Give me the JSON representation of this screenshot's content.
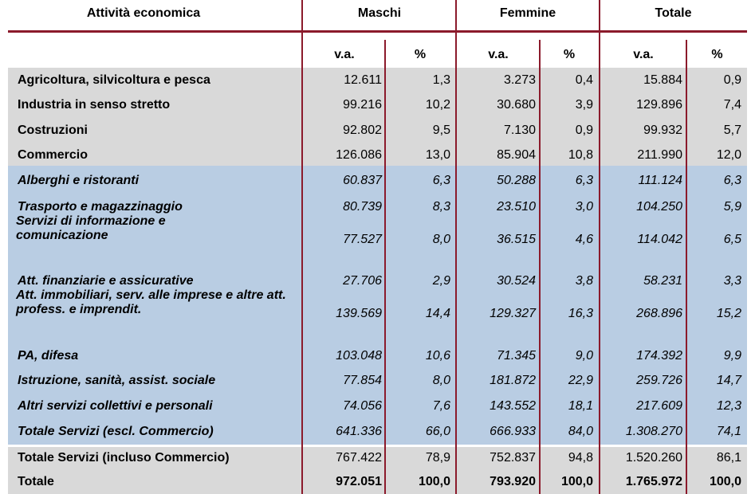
{
  "header": {
    "activity": "Attività economica",
    "males": "Maschi",
    "females": "Femmine",
    "total": "Totale",
    "va": "v.a.",
    "pct": "%"
  },
  "rows": [
    {
      "label": "Agricoltura, silvicoltura e pesca",
      "m_va": "12.611",
      "m_pct": "1,3",
      "f_va": "3.273",
      "f_pct": "0,4",
      "t_va": "15.884",
      "t_pct": "0,9"
    },
    {
      "label": "Industria in senso stretto",
      "m_va": "99.216",
      "m_pct": "10,2",
      "f_va": "30.680",
      "f_pct": "3,9",
      "t_va": "129.896",
      "t_pct": "7,4"
    },
    {
      "label": "Costruzioni",
      "m_va": "92.802",
      "m_pct": "9,5",
      "f_va": "7.130",
      "f_pct": "0,9",
      "t_va": "99.932",
      "t_pct": "5,7"
    },
    {
      "label": "Commercio",
      "m_va": "126.086",
      "m_pct": "13,0",
      "f_va": "85.904",
      "f_pct": "10,8",
      "t_va": "211.990",
      "t_pct": "12,0"
    },
    {
      "label": "Alberghi e ristoranti",
      "m_va": "60.837",
      "m_pct": "6,3",
      "f_va": "50.288",
      "f_pct": "6,3",
      "t_va": "111.124",
      "t_pct": "6,3"
    },
    {
      "label": "Trasporto e magazzinaggio",
      "m_va": "80.739",
      "m_pct": "8,3",
      "f_va": "23.510",
      "f_pct": "3,0",
      "t_va": "104.250",
      "t_pct": "5,9"
    },
    {
      "label": "Servizi di informazione e comunicazione",
      "m_va": "77.527",
      "m_pct": "8,0",
      "f_va": "36.515",
      "f_pct": "4,6",
      "t_va": "114.042",
      "t_pct": "6,5"
    },
    {
      "label": "Att. finanziarie e assicurative",
      "m_va": "27.706",
      "m_pct": "2,9",
      "f_va": "30.524",
      "f_pct": "3,8",
      "t_va": "58.231",
      "t_pct": "3,3"
    },
    {
      "label": "Att. immobiliari, serv. alle imprese e altre att. profess. e imprendit.",
      "m_va": "139.569",
      "m_pct": "14,4",
      "f_va": "129.327",
      "f_pct": "16,3",
      "t_va": "268.896",
      "t_pct": "15,2"
    },
    {
      "label": "PA, difesa",
      "m_va": "103.048",
      "m_pct": "10,6",
      "f_va": "71.345",
      "f_pct": "9,0",
      "t_va": "174.392",
      "t_pct": "9,9"
    },
    {
      "label": "Istruzione, sanità, assist. sociale",
      "m_va": "77.854",
      "m_pct": "8,0",
      "f_va": "181.872",
      "f_pct": "22,9",
      "t_va": "259.726",
      "t_pct": "14,7"
    },
    {
      "label": "Altri servizi collettivi e personali",
      "m_va": "74.056",
      "m_pct": "7,6",
      "f_va": "143.552",
      "f_pct": "18,1",
      "t_va": "217.609",
      "t_pct": "12,3"
    },
    {
      "label": "Totale Servizi (escl. Commercio)",
      "m_va": "641.336",
      "m_pct": "66,0",
      "f_va": "666.933",
      "f_pct": "84,0",
      "t_va": "1.308.270",
      "t_pct": "74,1"
    },
    {
      "label": "Totale Servizi (incluso Commercio)",
      "m_va": "767.422",
      "m_pct": "78,9",
      "f_va": "752.837",
      "f_pct": "94,8",
      "t_va": "1.520.260",
      "t_pct": "86,1"
    },
    {
      "label": "Totale",
      "m_va": "972.051",
      "m_pct": "100,0",
      "f_va": "793.920",
      "f_pct": "100,0",
      "t_va": "1.765.972",
      "t_pct": "100,0"
    }
  ],
  "colors": {
    "rule": "#8b1a2b",
    "gray_band": "#d9d9d9",
    "blue_band": "#b9cde3"
  }
}
